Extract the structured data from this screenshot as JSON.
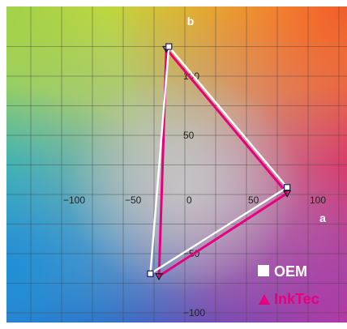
{
  "chart_data": {
    "type": "scatter",
    "title": "",
    "xlabel": "a",
    "ylabel": "b",
    "xlim": [
      -130,
      130
    ],
    "ylim": [
      -110,
      130
    ],
    "grid": true,
    "background": "CIELAB a*b* color plane (green upper-left, yellow top, red right, magenta lower-right, blue lower-left, cyan left)",
    "x_ticks": [
      {
        "value": -100,
        "label": "−100"
      },
      {
        "value": -50,
        "label": "−50"
      },
      {
        "value": 0,
        "label": "0"
      },
      {
        "value": 50,
        "label": "50"
      },
      {
        "value": 100,
        "label": "100"
      }
    ],
    "y_ticks": [
      {
        "value": 100,
        "label": "100"
      },
      {
        "value": 50,
        "label": "50"
      },
      {
        "value": -50,
        "label": "−50"
      },
      {
        "value": -100,
        "label": "−100"
      }
    ],
    "legend_position": "bottom-right",
    "series": [
      {
        "name": "OEM",
        "color": "#ffffff",
        "marker": "square",
        "points": [
          {
            "a": -13,
            "b": 125
          },
          {
            "a": 83,
            "b": 6
          },
          {
            "a": -28,
            "b": -67
          }
        ]
      },
      {
        "name": "InkTec",
        "color": "#e6007e",
        "marker": "triangle",
        "points": [
          {
            "a": -15,
            "b": 123
          },
          {
            "a": 83,
            "b": 1
          },
          {
            "a": -21,
            "b": -69
          }
        ]
      }
    ]
  }
}
